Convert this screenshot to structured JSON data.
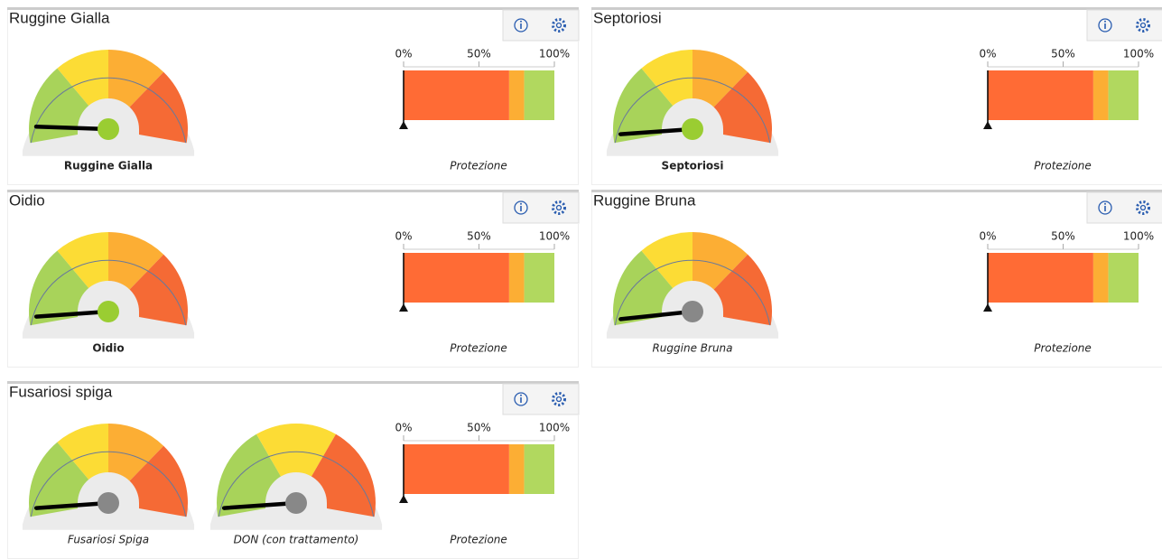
{
  "panels": [
    {
      "title": "Ruggine Gialla",
      "gauges": [
        {
          "label": "Ruggine Gialla",
          "label_style": "bold",
          "range": [
            0,
            100
          ],
          "value": 6,
          "knob_color": "#9acd32",
          "zones": [
            {
              "to": 30,
              "color": "#a8d35a"
            },
            {
              "to": 50,
              "color": "#fcdc35"
            },
            {
              "to": 72,
              "color": "#fcae34"
            },
            {
              "to": 100,
              "color": "#f56a35"
            }
          ]
        }
      ],
      "protection": {
        "label": "Protezione",
        "xlim": [
          0,
          100
        ],
        "xticks": [
          {
            "value": 0,
            "label": "0%"
          },
          {
            "value": 50,
            "label": "50%"
          },
          {
            "value": 100,
            "label": "100%"
          }
        ],
        "marker": 0,
        "segments": [
          {
            "value": 70,
            "color": "#ff6b35"
          },
          {
            "value": 10,
            "color": "#fcae34"
          },
          {
            "value": 20,
            "color": "#b1d85f"
          }
        ]
      }
    },
    {
      "title": "Septoriosi",
      "gauges": [
        {
          "label": "Septoriosi",
          "label_style": "bold",
          "range": [
            0,
            100
          ],
          "value": 3,
          "knob_color": "#9acd32",
          "zones": [
            {
              "to": 30,
              "color": "#a8d35a"
            },
            {
              "to": 50,
              "color": "#fcdc35"
            },
            {
              "to": 72,
              "color": "#fcae34"
            },
            {
              "to": 100,
              "color": "#f56a35"
            }
          ]
        }
      ],
      "protection": {
        "label": "Protezione",
        "xlim": [
          0,
          100
        ],
        "xticks": [
          {
            "value": 0,
            "label": "0%"
          },
          {
            "value": 50,
            "label": "50%"
          },
          {
            "value": 100,
            "label": "100%"
          }
        ],
        "marker": 0,
        "segments": [
          {
            "value": 70,
            "color": "#ff6b35"
          },
          {
            "value": 10,
            "color": "#fcae34"
          },
          {
            "value": 20,
            "color": "#b1d85f"
          }
        ]
      }
    },
    {
      "title": "Oidio",
      "gauges": [
        {
          "label": "Oidio",
          "label_style": "bold",
          "range": [
            0,
            100
          ],
          "value": 3,
          "knob_color": "#9acd32",
          "zones": [
            {
              "to": 30,
              "color": "#a8d35a"
            },
            {
              "to": 50,
              "color": "#fcdc35"
            },
            {
              "to": 72,
              "color": "#fcae34"
            },
            {
              "to": 100,
              "color": "#f56a35"
            }
          ]
        }
      ],
      "protection": {
        "label": "Protezione",
        "xlim": [
          0,
          100
        ],
        "xticks": [
          {
            "value": 0,
            "label": "0%"
          },
          {
            "value": 50,
            "label": "50%"
          },
          {
            "value": 100,
            "label": "100%"
          }
        ],
        "marker": 0,
        "segments": [
          {
            "value": 70,
            "color": "#ff6b35"
          },
          {
            "value": 10,
            "color": "#fcae34"
          },
          {
            "value": 20,
            "color": "#b1d85f"
          }
        ]
      }
    },
    {
      "title": "Ruggine Bruna",
      "gauges": [
        {
          "label": "Ruggine Bruna",
          "label_style": "italic",
          "range": [
            0,
            100
          ],
          "value": 2,
          "knob_color": "#888888",
          "zones": [
            {
              "to": 30,
              "color": "#a8d35a"
            },
            {
              "to": 50,
              "color": "#fcdc35"
            },
            {
              "to": 72,
              "color": "#fcae34"
            },
            {
              "to": 100,
              "color": "#f56a35"
            }
          ]
        }
      ],
      "protection": {
        "label": "Protezione",
        "xlim": [
          0,
          100
        ],
        "xticks": [
          {
            "value": 0,
            "label": "0%"
          },
          {
            "value": 50,
            "label": "50%"
          },
          {
            "value": 100,
            "label": "100%"
          }
        ],
        "marker": 0,
        "segments": [
          {
            "value": 70,
            "color": "#ff6b35"
          },
          {
            "value": 10,
            "color": "#fcae34"
          },
          {
            "value": 20,
            "color": "#b1d85f"
          }
        ]
      }
    },
    {
      "title": "Fusariosi spiga",
      "gauges": [
        {
          "label": "Fusariosi Spiga",
          "label_style": "italic",
          "range": [
            0,
            100
          ],
          "value": 3,
          "knob_color": "#888888",
          "zones": [
            {
              "to": 30,
              "color": "#a8d35a"
            },
            {
              "to": 50,
              "color": "#fcdc35"
            },
            {
              "to": 72,
              "color": "#fcae34"
            },
            {
              "to": 100,
              "color": "#f56a35"
            }
          ]
        },
        {
          "label": "DON (con trattamento)",
          "label_style": "italic",
          "range": [
            0,
            100
          ],
          "value": 3,
          "knob_color": "#888888",
          "zones": [
            {
              "to": 35,
              "color": "#a8d35a"
            },
            {
              "to": 65,
              "color": "#fcdc35"
            },
            {
              "to": 100,
              "color": "#f56a35"
            }
          ]
        }
      ],
      "protection": {
        "label": "Protezione",
        "xlim": [
          0,
          100
        ],
        "xticks": [
          {
            "value": 0,
            "label": "0%"
          },
          {
            "value": 50,
            "label": "50%"
          },
          {
            "value": 100,
            "label": "100%"
          }
        ],
        "marker": 0,
        "segments": [
          {
            "value": 70,
            "color": "#ff6b35"
          },
          {
            "value": 10,
            "color": "#fcae34"
          },
          {
            "value": 20,
            "color": "#b1d85f"
          }
        ]
      }
    }
  ]
}
